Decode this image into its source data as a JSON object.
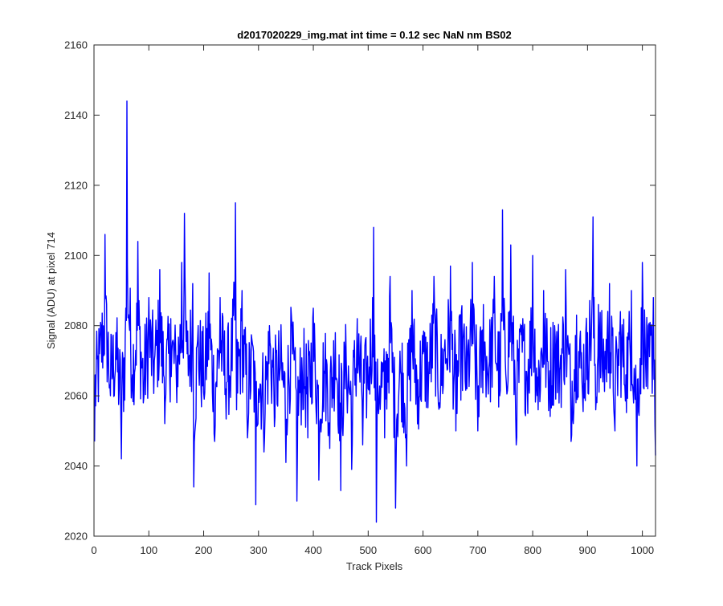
{
  "chart_data": {
    "type": "line",
    "title": "d2017020229_img.mat int time = 0.12 sec  NaN nm BS02",
    "xlabel": "Track Pixels",
    "ylabel": "Signal (ADU) at pixel 714",
    "xlim": [
      0,
      1024
    ],
    "ylim": [
      2020,
      2160
    ],
    "xticks": [
      0,
      100,
      200,
      300,
      400,
      500,
      600,
      700,
      800,
      900,
      1000
    ],
    "yticks": [
      2020,
      2040,
      2060,
      2080,
      2100,
      2120,
      2140,
      2160
    ],
    "grid": false,
    "series": [
      {
        "color": "#0000ff",
        "x": [
          1,
          10,
          20,
          30,
          40,
          50,
          58,
          60,
          70,
          80,
          90,
          100,
          110,
          120,
          130,
          140,
          150,
          160,
          165,
          170,
          180,
          182,
          190,
          200,
          210,
          220,
          230,
          240,
          250,
          258,
          260,
          270,
          280,
          290,
          295,
          300,
          310,
          320,
          330,
          340,
          350,
          360,
          370,
          380,
          390,
          400,
          410,
          420,
          430,
          440,
          450,
          460,
          470,
          480,
          490,
          500,
          510,
          515,
          520,
          530,
          540,
          550,
          560,
          570,
          580,
          590,
          600,
          610,
          620,
          630,
          640,
          650,
          660,
          670,
          680,
          690,
          700,
          710,
          720,
          730,
          740,
          745,
          750,
          760,
          770,
          780,
          790,
          800,
          810,
          820,
          830,
          840,
          850,
          860,
          870,
          880,
          890,
          900,
          910,
          915,
          920,
          930,
          940,
          950,
          960,
          970,
          980,
          990,
          1000,
          1010,
          1020,
          1024
        ],
        "y": [
          2047,
          2072,
          2106,
          2060,
          2078,
          2042,
          2085,
          2144,
          2066,
          2104,
          2058,
          2088,
          2070,
          2096,
          2058,
          2082,
          2066,
          2098,
          2112,
          2072,
          2092,
          2034,
          2080,
          2061,
          2095,
          2047,
          2088,
          2062,
          2071,
          2115,
          2056,
          2090,
          2048,
          2074,
          2029,
          2062,
          2044,
          2080,
          2054,
          2068,
          2041,
          2083,
          2030,
          2066,
          2048,
          2085,
          2036,
          2067,
          2045,
          2078,
          2033,
          2070,
          2039,
          2082,
          2046,
          2062,
          2108,
          2024,
          2060,
          2048,
          2094,
          2028,
          2066,
          2040,
          2090,
          2052,
          2072,
          2064,
          2094,
          2058,
          2076,
          2097,
          2050,
          2084,
          2062,
          2098,
          2050,
          2086,
          2068,
          2094,
          2060,
          2113,
          2070,
          2103,
          2046,
          2080,
          2064,
          2100,
          2056,
          2090,
          2062,
          2080,
          2068,
          2096,
          2047,
          2083,
          2064,
          2078,
          2111,
          2056,
          2086,
          2070,
          2092,
          2050,
          2084,
          2066,
          2090,
          2040,
          2098,
          2062,
          2088,
          2043
        ]
      }
    ]
  }
}
